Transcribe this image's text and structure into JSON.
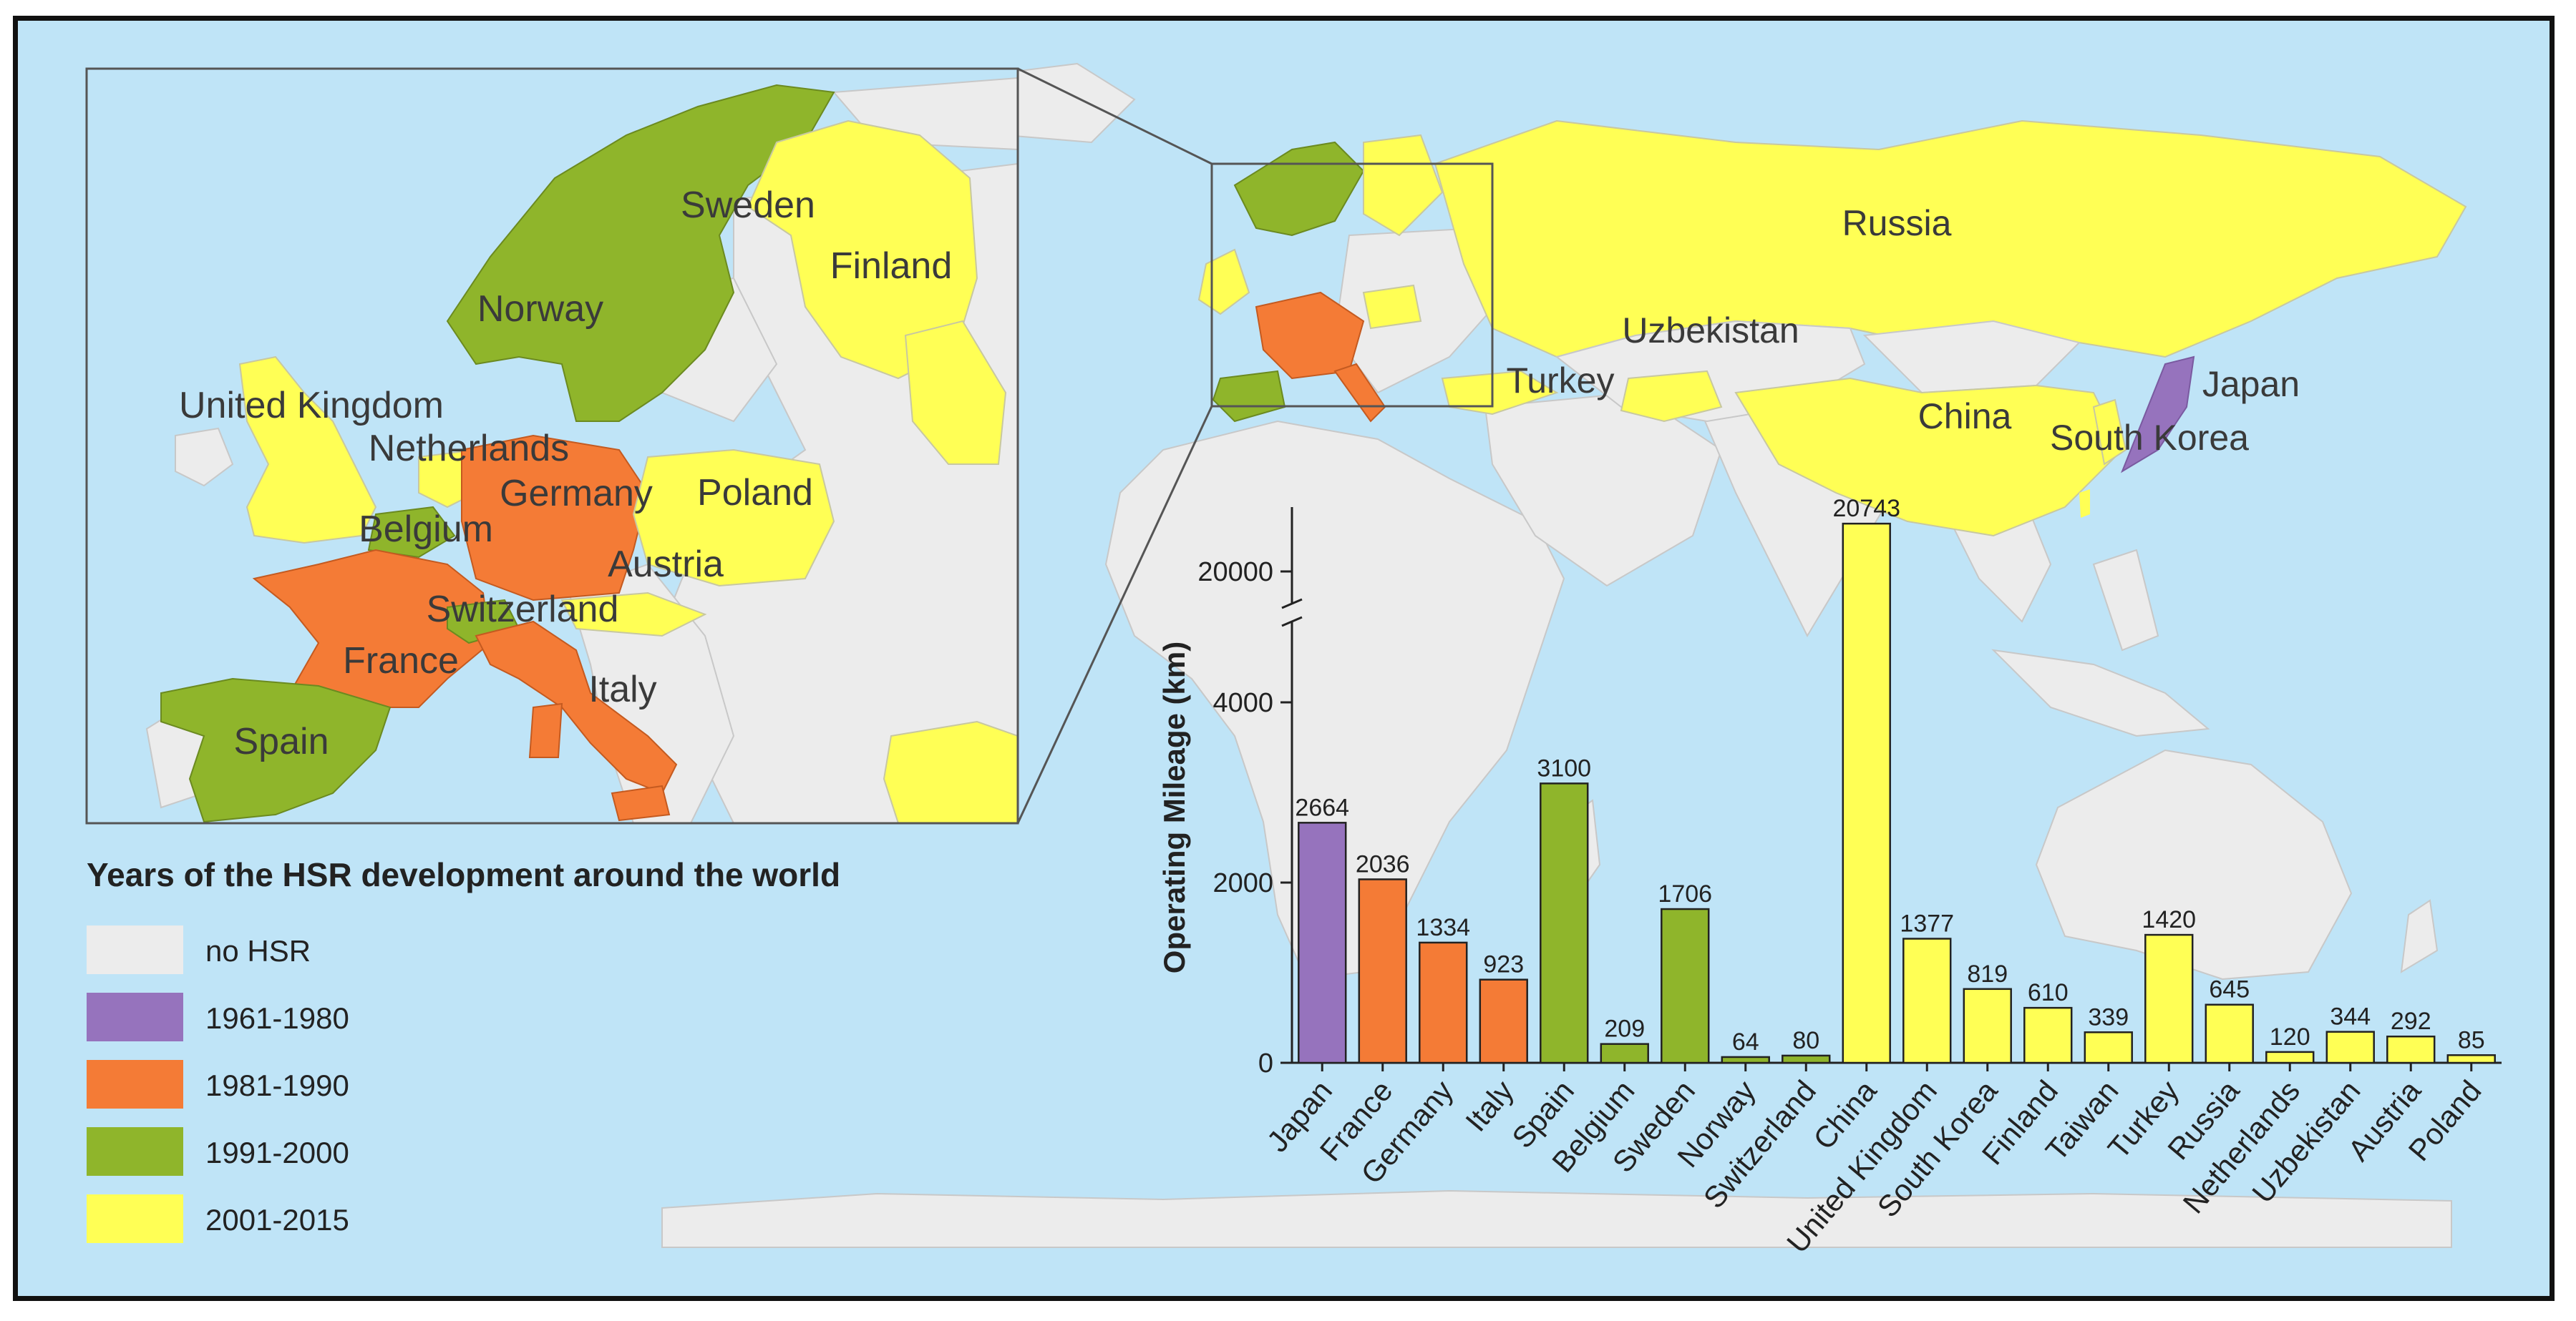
{
  "title": "Years of the HSR development around the world",
  "legend": [
    {
      "label": "no HSR",
      "color": "#ececec"
    },
    {
      "label": "1961-1980",
      "color": "#9673bd"
    },
    {
      "label": "1981-1990",
      "color": "#f47b36"
    },
    {
      "label": "1991-2000",
      "color": "#8fb52b"
    },
    {
      "label": "2001-2015",
      "color": "#ffff55"
    }
  ],
  "map_labels": {
    "russia": "Russia",
    "uzbekistan": "Uzbekistan",
    "turkey": "Turkey",
    "china": "China",
    "japan": "Japan",
    "south_korea": "South Korea"
  },
  "inset_labels": {
    "sweden": "Sweden",
    "finland": "Finland",
    "norway": "Norway",
    "united_kingdom": "United Kingdom",
    "netherlands": "Netherlands",
    "germany": "Germany",
    "poland": "Poland",
    "belgium": "Belgium",
    "austria": "Austria",
    "switzerland": "Switzerland",
    "france": "France",
    "italy": "Italy",
    "spain": "Spain"
  },
  "chart_data": {
    "type": "bar",
    "ylabel": "Operating Mileage (km)",
    "yticks": [
      0,
      2000,
      4000,
      20000
    ],
    "axis_break": true,
    "categories": [
      "Japan",
      "France",
      "Germany",
      "Italy",
      "Spain",
      "Belgium",
      "Sweden",
      "Norway",
      "Switzerland",
      "China",
      "United Kingdom",
      "South Korea",
      "Finland",
      "Taiwan",
      "Turkey",
      "Russia",
      "Netherlands",
      "Uzbekistan",
      "Austria",
      "Poland"
    ],
    "values": [
      2664,
      2036,
      1334,
      923,
      3100,
      209,
      1706,
      64,
      80,
      20743,
      1377,
      819,
      610,
      339,
      1420,
      645,
      120,
      344,
      292,
      85
    ],
    "period": [
      "1961-1980",
      "1981-1990",
      "1981-1990",
      "1981-1990",
      "1991-2000",
      "1991-2000",
      "1991-2000",
      "1991-2000",
      "1991-2000",
      "2001-2015",
      "2001-2015",
      "2001-2015",
      "2001-2015",
      "2001-2015",
      "2001-2015",
      "2001-2015",
      "2001-2015",
      "2001-2015",
      "2001-2015",
      "2001-2015"
    ]
  }
}
